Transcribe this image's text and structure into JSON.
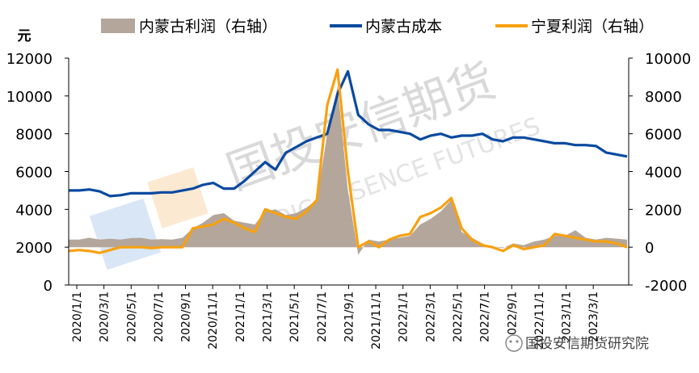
{
  "chart_data": {
    "type": "area+line",
    "title": "",
    "y_unit_label": "元",
    "left_axis": {
      "min": 0,
      "max": 12000,
      "step": 2000,
      "ticks": [
        "0",
        "2000",
        "4000",
        "6000",
        "8000",
        "10000",
        "12000"
      ]
    },
    "right_axis": {
      "min": -2000,
      "max": 10000,
      "step": 2000,
      "ticks": [
        "-2000",
        "0",
        "2000",
        "4000",
        "6000",
        "8000",
        "10000"
      ]
    },
    "x_tick_labels": [
      "2020/1/1",
      "2020/3/1",
      "2020/5/1",
      "2020/7/1",
      "2020/9/1",
      "2020/11/1",
      "2021/1/1",
      "2021/3/1",
      "2021/5/1",
      "2021/7/1",
      "2021/9/1",
      "2021/11/1",
      "2022/1/1",
      "2022/3/1",
      "2022/5/1",
      "2022/7/1",
      "2022/9/1",
      "2022/11/1",
      "2023/1/1",
      "2023/3/1"
    ],
    "legend": {
      "placement": "top",
      "entries": [
        "内蒙古利润（右轴）",
        "内蒙古成本",
        "宁夏利润（右轴）"
      ]
    },
    "grid": false,
    "series": [
      {
        "name": "内蒙古利润（右轴）",
        "kind": "area",
        "axis": "right",
        "color": "#b4a69a",
        "points": [
          [
            0,
            400
          ],
          [
            1,
            400
          ],
          [
            2,
            500
          ],
          [
            3,
            400
          ],
          [
            4,
            450
          ],
          [
            5,
            400
          ],
          [
            6,
            480
          ],
          [
            7,
            500
          ],
          [
            8,
            400
          ],
          [
            9,
            420
          ],
          [
            10,
            400
          ],
          [
            11,
            500
          ],
          [
            12,
            1000
          ],
          [
            13,
            1300
          ],
          [
            14,
            1700
          ],
          [
            15,
            1800
          ],
          [
            16,
            1400
          ],
          [
            17,
            1300
          ],
          [
            18,
            1200
          ],
          [
            19,
            1900
          ],
          [
            20,
            2000
          ],
          [
            21,
            1700
          ],
          [
            22,
            1800
          ],
          [
            23,
            2100
          ],
          [
            24,
            2500
          ],
          [
            25,
            6000
          ],
          [
            26,
            8500
          ],
          [
            27,
            3000
          ],
          [
            28,
            -400
          ],
          [
            29,
            400
          ],
          [
            30,
            300
          ],
          [
            31,
            400
          ],
          [
            32,
            500
          ],
          [
            33,
            600
          ],
          [
            34,
            1200
          ],
          [
            35,
            1500
          ],
          [
            36,
            1900
          ],
          [
            37,
            2500
          ],
          [
            38,
            800
          ],
          [
            39,
            500
          ],
          [
            40,
            200
          ],
          [
            41,
            0
          ],
          [
            42,
            -50
          ],
          [
            43,
            200
          ],
          [
            44,
            100
          ],
          [
            45,
            300
          ],
          [
            46,
            400
          ],
          [
            47,
            600
          ],
          [
            48,
            600
          ],
          [
            49,
            900
          ],
          [
            50,
            500
          ],
          [
            51,
            400
          ],
          [
            52,
            500
          ],
          [
            53,
            450
          ],
          [
            54,
            400
          ]
        ]
      },
      {
        "name": "内蒙古成本",
        "kind": "line",
        "axis": "left",
        "color": "#0a4aa0",
        "points": [
          [
            0,
            5000
          ],
          [
            1,
            5000
          ],
          [
            2,
            5050
          ],
          [
            3,
            4950
          ],
          [
            4,
            4700
          ],
          [
            5,
            4750
          ],
          [
            6,
            4850
          ],
          [
            7,
            4850
          ],
          [
            8,
            4850
          ],
          [
            9,
            4900
          ],
          [
            10,
            4900
          ],
          [
            11,
            5000
          ],
          [
            12,
            5100
          ],
          [
            13,
            5300
          ],
          [
            14,
            5400
          ],
          [
            15,
            5100
          ],
          [
            16,
            5100
          ],
          [
            17,
            5500
          ],
          [
            18,
            6000
          ],
          [
            19,
            6500
          ],
          [
            20,
            6100
          ],
          [
            21,
            7000
          ],
          [
            22,
            7300
          ],
          [
            23,
            7600
          ],
          [
            24,
            7800
          ],
          [
            25,
            8000
          ],
          [
            26,
            10100
          ],
          [
            27,
            11300
          ],
          [
            28,
            9000
          ],
          [
            29,
            8500
          ],
          [
            30,
            8200
          ],
          [
            31,
            8200
          ],
          [
            32,
            8100
          ],
          [
            33,
            8000
          ],
          [
            34,
            7700
          ],
          [
            35,
            7900
          ],
          [
            36,
            8000
          ],
          [
            37,
            7800
          ],
          [
            38,
            7900
          ],
          [
            39,
            7900
          ],
          [
            40,
            8000
          ],
          [
            41,
            7700
          ],
          [
            42,
            7600
          ],
          [
            43,
            7800
          ],
          [
            44,
            7800
          ],
          [
            45,
            7700
          ],
          [
            46,
            7600
          ],
          [
            47,
            7500
          ],
          [
            48,
            7500
          ],
          [
            49,
            7400
          ],
          [
            50,
            7400
          ],
          [
            51,
            7350
          ],
          [
            52,
            7000
          ],
          [
            53,
            6900
          ],
          [
            54,
            6800
          ]
        ]
      },
      {
        "name": "宁夏利润（右轴）",
        "kind": "line",
        "axis": "right",
        "color": "#f7a110",
        "points": [
          [
            0,
            -200
          ],
          [
            1,
            -150
          ],
          [
            2,
            -200
          ],
          [
            3,
            -300
          ],
          [
            4,
            -150
          ],
          [
            5,
            0
          ],
          [
            6,
            0
          ],
          [
            7,
            0
          ],
          [
            8,
            -50
          ],
          [
            9,
            0
          ],
          [
            10,
            0
          ],
          [
            11,
            0
          ],
          [
            12,
            1000
          ],
          [
            13,
            1100
          ],
          [
            14,
            1200
          ],
          [
            15,
            1500
          ],
          [
            16,
            1300
          ],
          [
            17,
            1000
          ],
          [
            18,
            800
          ],
          [
            19,
            2000
          ],
          [
            20,
            1800
          ],
          [
            21,
            1600
          ],
          [
            22,
            1500
          ],
          [
            23,
            1900
          ],
          [
            24,
            2500
          ],
          [
            25,
            7500
          ],
          [
            26,
            9400
          ],
          [
            27,
            4000
          ],
          [
            28,
            0
          ],
          [
            29,
            300
          ],
          [
            30,
            0
          ],
          [
            31,
            400
          ],
          [
            32,
            600
          ],
          [
            33,
            700
          ],
          [
            34,
            1600
          ],
          [
            35,
            1800
          ],
          [
            36,
            2100
          ],
          [
            37,
            2600
          ],
          [
            38,
            1000
          ],
          [
            39,
            400
          ],
          [
            40,
            100
          ],
          [
            41,
            0
          ],
          [
            42,
            -200
          ],
          [
            43,
            100
          ],
          [
            44,
            -100
          ],
          [
            45,
            0
          ],
          [
            46,
            100
          ],
          [
            47,
            700
          ],
          [
            48,
            600
          ],
          [
            49,
            500
          ],
          [
            50,
            400
          ],
          [
            51,
            300
          ],
          [
            52,
            300
          ],
          [
            53,
            200
          ],
          [
            54,
            0
          ]
        ]
      }
    ]
  },
  "watermark": {
    "text": "国投安信期货",
    "sub_text": "SDIC ESSENCE FUTURES"
  },
  "footer": {
    "credit": "国投安信期货研究院"
  },
  "colors": {
    "axis": "#000000",
    "text": "#000000"
  }
}
